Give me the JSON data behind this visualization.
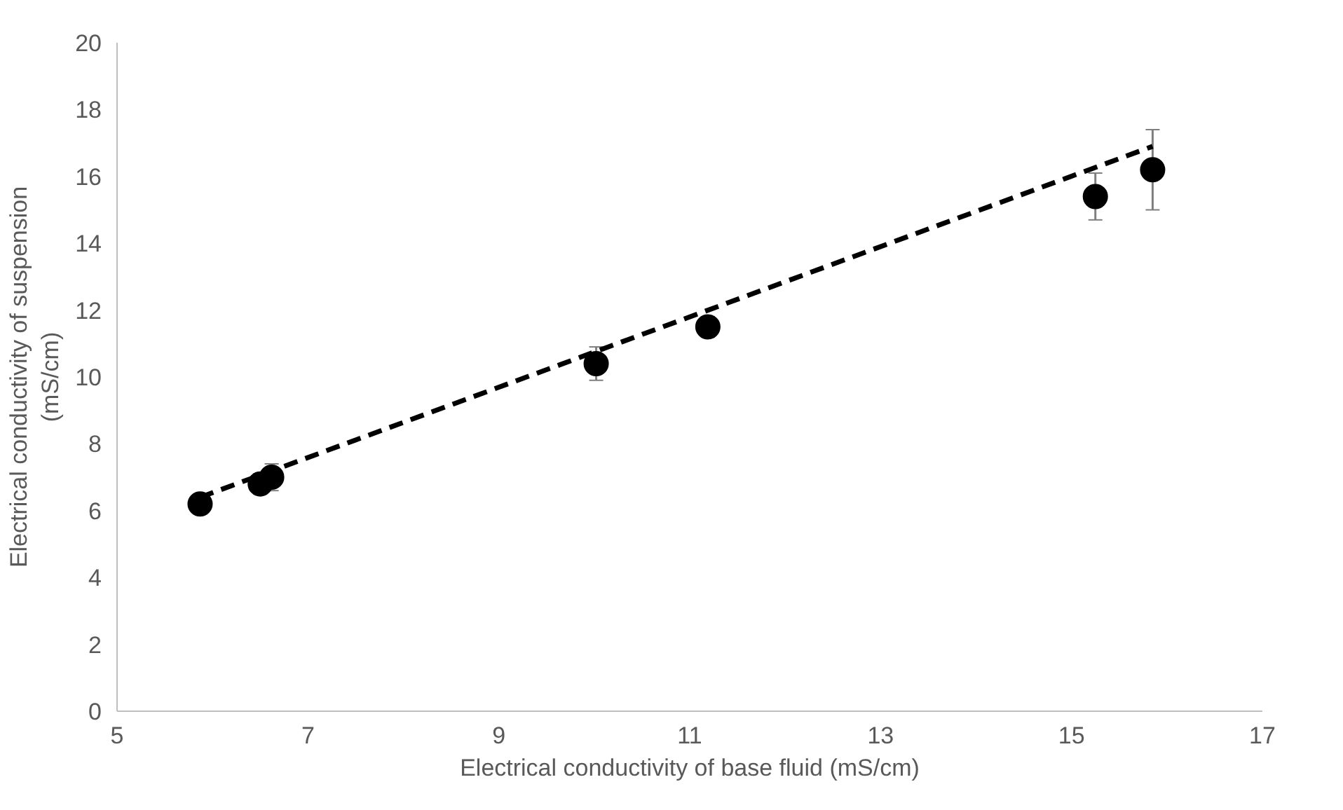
{
  "chart_data": {
    "type": "scatter",
    "xlabel": "Electrical conductivity of base fluid (mS/cm)",
    "ylabel": "Electrical conductivity of suspension\n(mS/cm)",
    "xlim": [
      5,
      17
    ],
    "xticks": [
      5,
      7,
      9,
      11,
      13,
      15,
      17
    ],
    "ylim": [
      0,
      20
    ],
    "yticks": [
      0,
      2,
      4,
      6,
      8,
      10,
      12,
      14,
      16,
      18,
      20
    ],
    "grid": false,
    "series": [
      {
        "marker": "circle",
        "color": "#000000",
        "x": [
          5.87,
          6.5,
          6.62,
          10.02,
          11.19,
          15.25,
          15.85
        ],
        "values": [
          6.2,
          6.8,
          7.0,
          10.4,
          11.5,
          15.4,
          16.2
        ],
        "errors": [
          0.3,
          0.3,
          0.4,
          0.5,
          0.3,
          0.7,
          1.2
        ]
      },
      {
        "type": "line",
        "line_style": "dashed",
        "marker": "none",
        "color": "#000000",
        "x": [
          5.87,
          15.85
        ],
        "values": [
          6.4,
          16.9
        ]
      }
    ]
  }
}
